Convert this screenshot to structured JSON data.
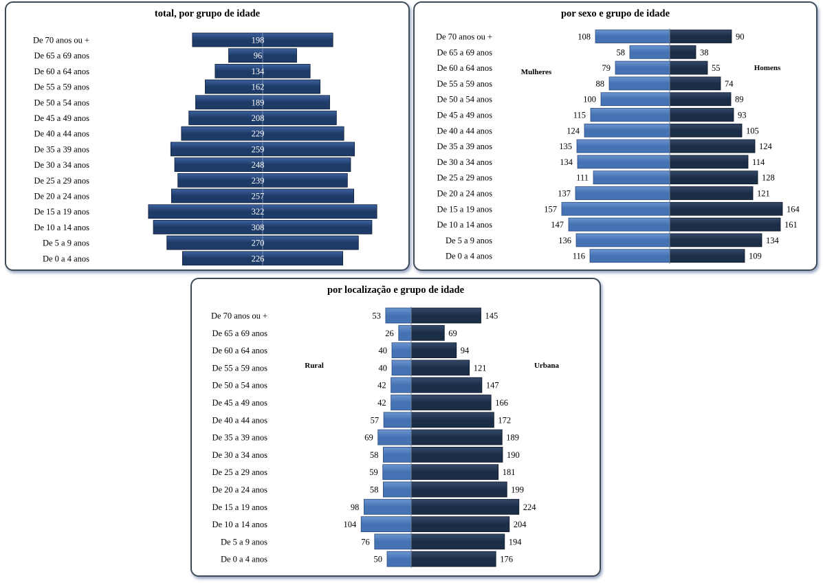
{
  "colors": {
    "total_bar": "#1e3b67",
    "total_bar_light": "#3d62a0",
    "women_bar": "#4472b3",
    "men_bar": "#1c2d46",
    "rural_bar": "#4472b3",
    "urban_bar": "#1c2d46",
    "panel_border": "#3f4a57"
  },
  "chart_data": [
    {
      "type": "bar",
      "orientation": "horizontal-centered",
      "title": "total, por grupo de idade",
      "categories": [
        "De 70 anos ou +",
        "De 65 a 69 anos",
        "De 60 a 64 anos",
        "De 55 a 59 anos",
        "De 50 a 54 anos",
        "De 45 a 49 anos",
        "De 40 a 44 anos",
        "De 35 a 39 anos",
        "De 30 a 34 anos",
        "De 25 a 29 anos",
        "De 20 a 24 anos",
        "De 15 a 19 anos",
        "De 10 a 14 anos",
        "De 5 a 9 anos",
        "De 0 a 4 anos"
      ],
      "values": [
        198,
        96,
        134,
        162,
        189,
        208,
        229,
        259,
        248,
        239,
        257,
        322,
        308,
        270,
        226
      ],
      "grid": false
    },
    {
      "type": "bar",
      "orientation": "population-pyramid",
      "title": "por sexo e grupo de idade",
      "categories": [
        "De 70 anos ou +",
        "De 65 a 69 anos",
        "De 60 a 64 anos",
        "De 55 a 59 anos",
        "De 50 a 54 anos",
        "De 45 a 49 anos",
        "De 40 a 44 anos",
        "De 35 a 39 anos",
        "De 30 a 34 anos",
        "De 25 a 29 anos",
        "De 20 a 24 anos",
        "De 15 a 19 anos",
        "De 10 a 14 anos",
        "De 5 a 9 anos",
        "De 0 a 4 anos"
      ],
      "series": [
        {
          "name": "Mulheres",
          "side": "left",
          "values": [
            108,
            58,
            79,
            88,
            100,
            115,
            124,
            135,
            134,
            111,
            137,
            157,
            147,
            136,
            116
          ]
        },
        {
          "name": "Homens",
          "side": "right",
          "values": [
            90,
            38,
            55,
            74,
            89,
            93,
            105,
            124,
            114,
            128,
            121,
            164,
            161,
            134,
            109
          ]
        }
      ],
      "grid": false
    },
    {
      "type": "bar",
      "orientation": "population-pyramid",
      "title": "por localização  e grupo de idade",
      "categories": [
        "De 70 anos ou +",
        "De 65 a 69 anos",
        "De 60 a 64 anos",
        "De 55 a 59 anos",
        "De 50 a 54 anos",
        "De 45 a 49 anos",
        "De 40 a 44 anos",
        "De 35 a 39 anos",
        "De 30 a 34 anos",
        "De 25 a 29 anos",
        "De 20 a 24 anos",
        "De 15 a 19 anos",
        "De 10 a 14 anos",
        "De 5 a 9 anos",
        "De 0 a 4 anos"
      ],
      "series": [
        {
          "name": "Rural",
          "side": "left",
          "values": [
            53,
            26,
            40,
            40,
            42,
            42,
            57,
            69,
            58,
            59,
            58,
            98,
            104,
            76,
            50
          ]
        },
        {
          "name": "Urbana",
          "side": "right",
          "values": [
            145,
            69,
            94,
            121,
            147,
            166,
            172,
            189,
            190,
            181,
            199,
            224,
            204,
            194,
            176
          ]
        }
      ],
      "grid": false
    }
  ]
}
